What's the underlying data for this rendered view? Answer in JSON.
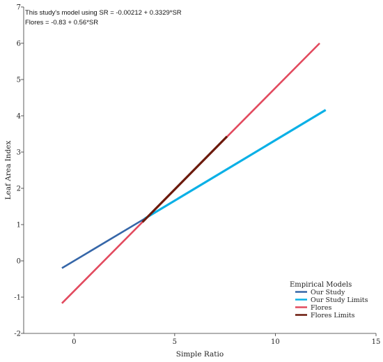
{
  "chart_data": {
    "type": "line",
    "annotations": [
      "This study's model using SR = -0.00212 + 0.3329*SR",
      "Flores = -0.83 + 0.56*SR"
    ],
    "xlabel": "Simple Ratio",
    "ylabel": "Leaf Area Index",
    "xlim": [
      -2.5,
      15
    ],
    "ylim": [
      -2,
      7
    ],
    "x_ticks": [
      "0",
      "5",
      "10",
      "15"
    ],
    "y_ticks": [
      "-2",
      "-1",
      "0",
      "1",
      "2",
      "3",
      "4",
      "5",
      "6",
      "7"
    ],
    "legend": {
      "title": "Empirical Models",
      "position": "bottom-right"
    },
    "grid": false,
    "series": [
      {
        "name": "Our Study",
        "color": "#3566a8",
        "x": [
          -0.6,
          3.5
        ],
        "y": [
          -0.2,
          1.16
        ]
      },
      {
        "name": "Our Study Limits",
        "color": "#0ab0e6",
        "x": [
          3.5,
          12.5
        ],
        "y": [
          1.16,
          4.16
        ]
      },
      {
        "name": "Flores",
        "color": "#e24a5e",
        "x": [
          -0.6,
          12.2
        ],
        "y": [
          -1.17,
          6.0
        ]
      },
      {
        "name": "Flores Limits",
        "color": "#6b1a0c",
        "x": [
          3.4,
          7.6
        ],
        "y": [
          1.07,
          3.43
        ]
      }
    ]
  }
}
